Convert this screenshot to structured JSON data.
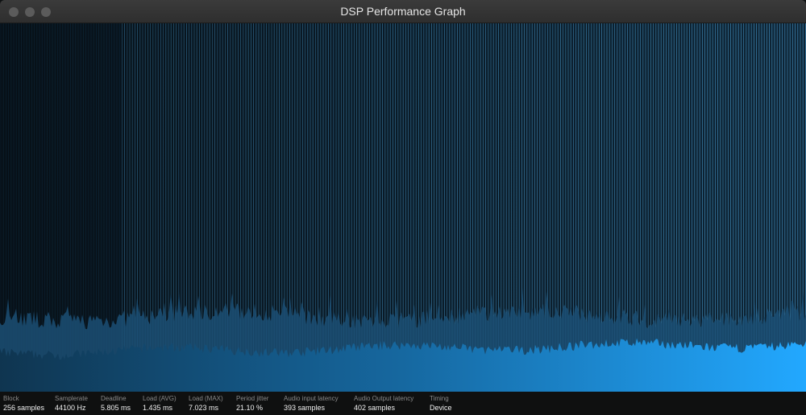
{
  "window": {
    "title": "DSP Performance Graph"
  },
  "colors": {
    "graph_bar_dark": "#1b4f74",
    "graph_bar_bright": "#1ea3f4",
    "spike_line": "#3f87b4"
  },
  "stats": [
    {
      "label": "Block",
      "value": "256 samples"
    },
    {
      "label": "Samplerate",
      "value": "44100 Hz"
    },
    {
      "label": "Deadline",
      "value": "5.805 ms"
    },
    {
      "label": "Load (AVG)",
      "value": "1.435 ms"
    },
    {
      "label": "Load (MAX)",
      "value": "7.023 ms"
    },
    {
      "label": "Period jitter",
      "value": "21.10 %"
    },
    {
      "label": "Audio input latency",
      "value": "393 samples"
    },
    {
      "label": "Audio Output latency",
      "value": "402 samples"
    },
    {
      "label": "Timing",
      "value": "Device"
    }
  ]
}
